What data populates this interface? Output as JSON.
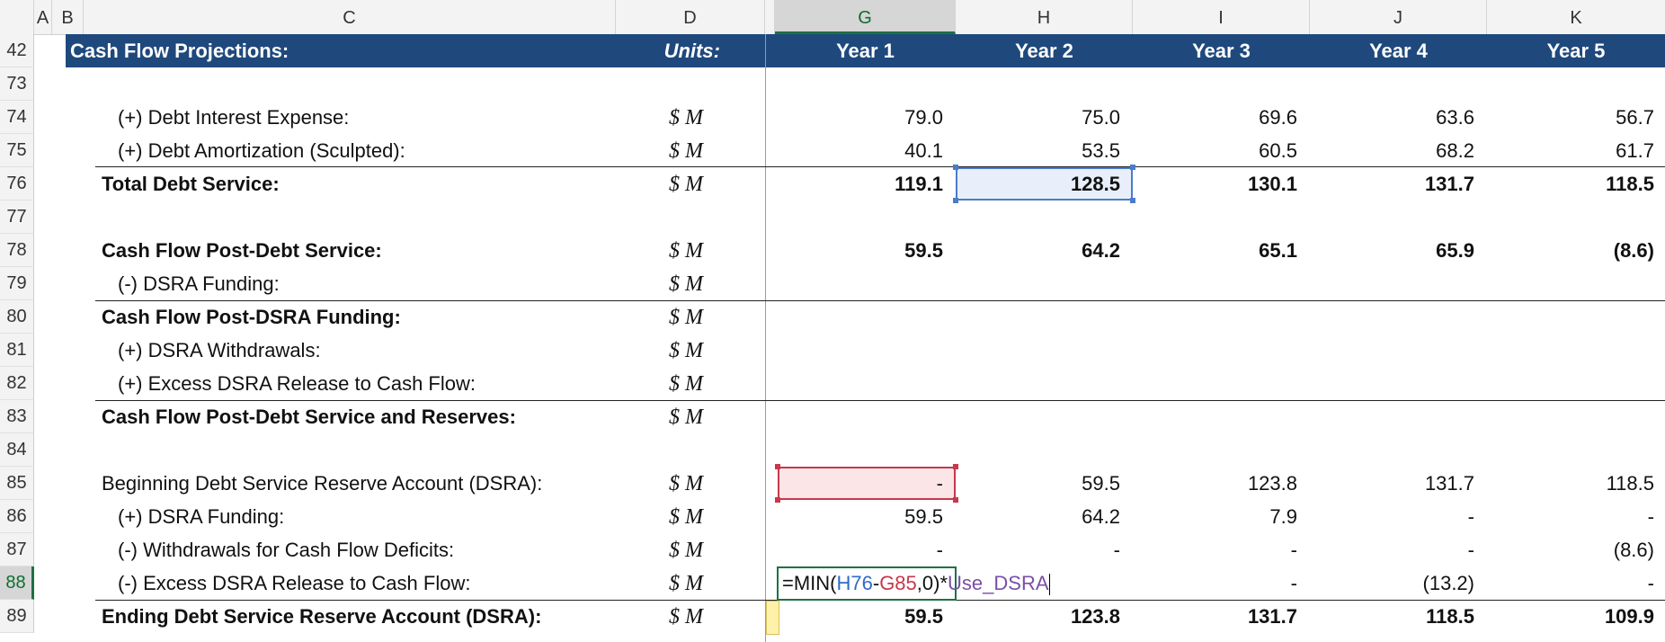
{
  "columns": [
    "A",
    "B",
    "C",
    "D",
    "G",
    "H",
    "I",
    "J",
    "K"
  ],
  "header_row": {
    "row_num": "42",
    "title": "Cash Flow Projections:",
    "units_label": "Units:",
    "years": [
      "Year 1",
      "Year 2",
      "Year 3",
      "Year 4",
      "Year 5"
    ]
  },
  "rows": [
    {
      "num": "73",
      "label": "",
      "units": "",
      "values": [
        "",
        "",
        "",
        "",
        ""
      ]
    },
    {
      "num": "74",
      "label": "(+) Debt Interest Expense:",
      "units": "$ M",
      "values": [
        "79.0",
        "75.0",
        "69.6",
        "63.6",
        "56.7"
      ]
    },
    {
      "num": "75",
      "label": "(+) Debt Amortization (Sculpted):",
      "units": "$ M",
      "values": [
        "40.1",
        "53.5",
        "60.5",
        "68.2",
        "61.7"
      ]
    },
    {
      "num": "76",
      "label": "Total Debt Service:",
      "units": "$ M",
      "values": [
        "119.1",
        "128.5",
        "130.1",
        "131.7",
        "118.5"
      ]
    },
    {
      "num": "77",
      "label": "",
      "units": "",
      "values": [
        "",
        "",
        "",
        "",
        ""
      ]
    },
    {
      "num": "78",
      "label": "Cash Flow Post-Debt Service:",
      "units": "$ M",
      "values": [
        "59.5",
        "64.2",
        "65.1",
        "65.9",
        "(8.6)"
      ]
    },
    {
      "num": "79",
      "label": "(-) DSRA Funding:",
      "units": "$ M",
      "values": [
        "",
        "",
        "",
        "",
        ""
      ]
    },
    {
      "num": "80",
      "label": "Cash Flow Post-DSRA Funding:",
      "units": "$ M",
      "values": [
        "",
        "",
        "",
        "",
        ""
      ]
    },
    {
      "num": "81",
      "label": "(+) DSRA Withdrawals:",
      "units": "$ M",
      "values": [
        "",
        "",
        "",
        "",
        ""
      ]
    },
    {
      "num": "82",
      "label": "(+) Excess DSRA Release to Cash Flow:",
      "units": "$ M",
      "values": [
        "",
        "",
        "",
        "",
        ""
      ]
    },
    {
      "num": "83",
      "label": "Cash Flow Post-Debt Service and Reserves:",
      "units": "$ M",
      "values": [
        "",
        "",
        "",
        "",
        ""
      ]
    },
    {
      "num": "84",
      "label": "",
      "units": "",
      "values": [
        "",
        "",
        "",
        "",
        ""
      ]
    },
    {
      "num": "85",
      "label": "Beginning Debt Service Reserve Account (DSRA):",
      "units": "$ M",
      "values": [
        "-",
        "59.5",
        "123.8",
        "131.7",
        "118.5"
      ]
    },
    {
      "num": "86",
      "label": "(+) DSRA Funding:",
      "units": "$ M",
      "values": [
        "59.5",
        "64.2",
        "7.9",
        "-",
        "-"
      ]
    },
    {
      "num": "87",
      "label": "(-) Withdrawals for Cash Flow Deficits:",
      "units": "$ M",
      "values": [
        "-",
        "-",
        "-",
        "-",
        "(8.6)"
      ]
    },
    {
      "num": "88",
      "label": "(-) Excess DSRA Release to Cash Flow:",
      "units": "$ M",
      "values": [
        "",
        "",
        "-",
        "(13.2)",
        "-"
      ]
    },
    {
      "num": "89",
      "label": "Ending Debt Service Reserve Account (DSRA):",
      "units": "$ M",
      "values": [
        "59.5",
        "123.8",
        "131.7",
        "118.5",
        "109.9"
      ]
    }
  ],
  "formula": {
    "prefix": "=MIN(",
    "ref1": "H76",
    "minus": "-",
    "ref2": "G85",
    "mid": ",0)*",
    "name": "Use_DSRA"
  },
  "colors": {
    "banner": "#1f497d",
    "ref1": "#2f6bc5",
    "ref2": "#c8384a",
    "name": "#7a4fa8"
  }
}
